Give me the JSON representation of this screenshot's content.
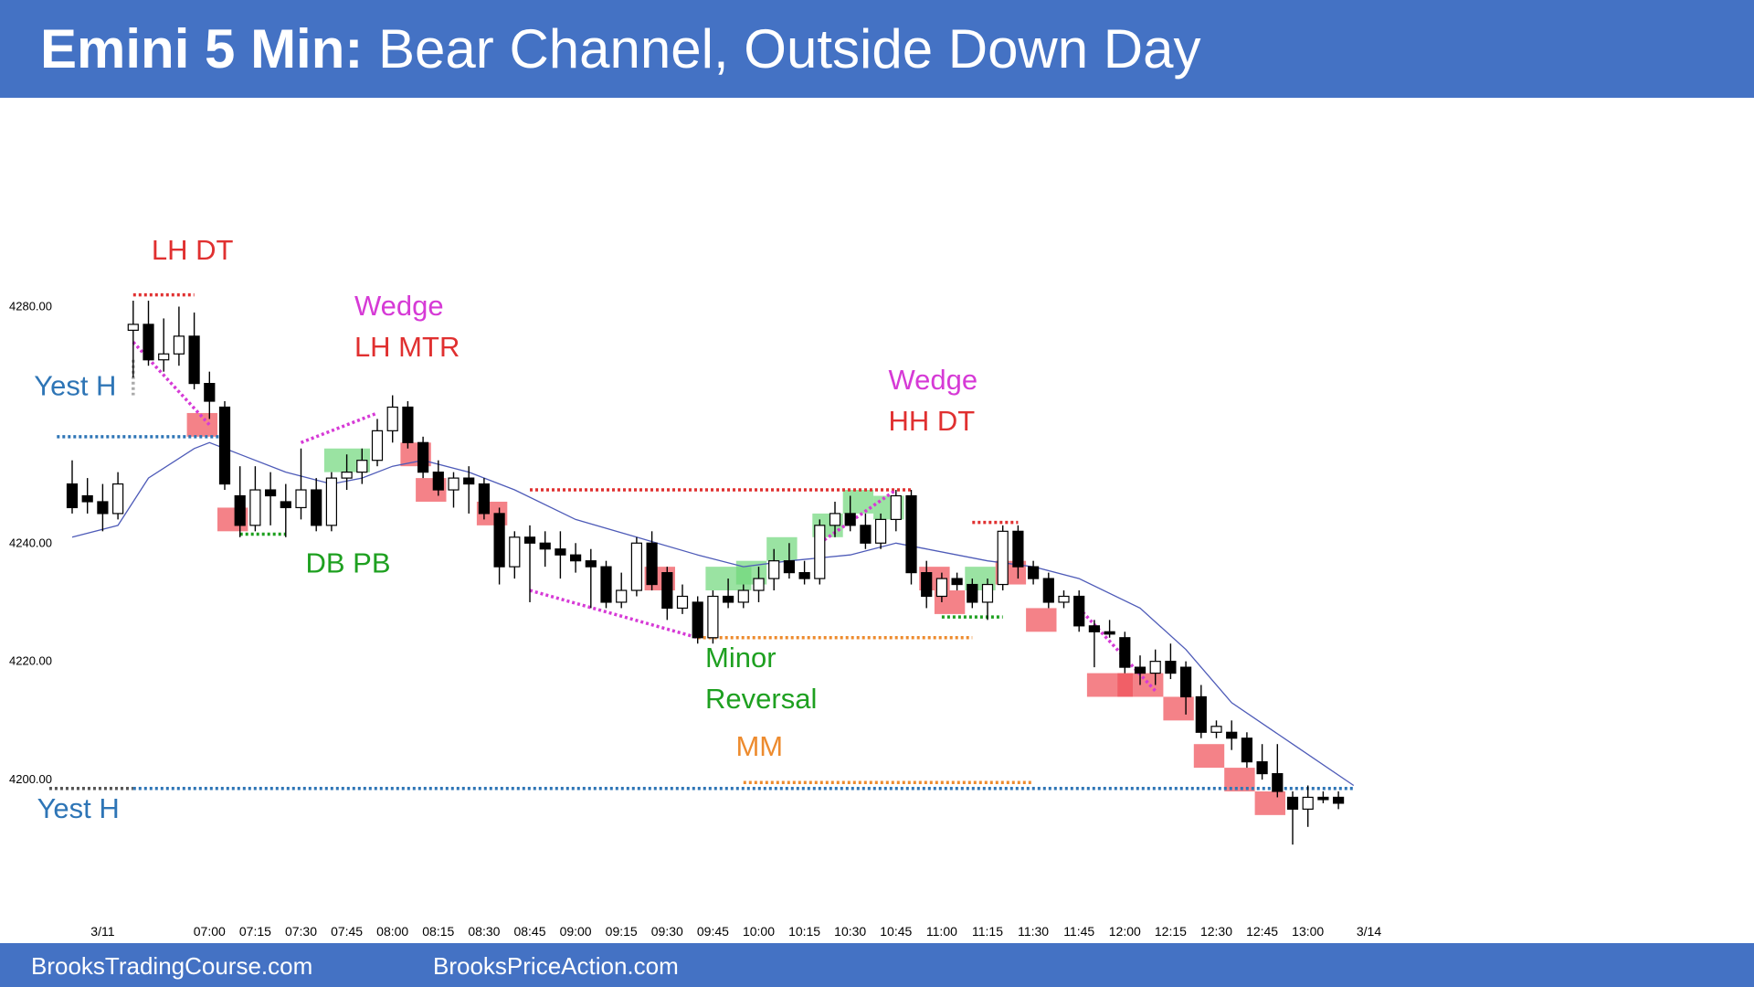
{
  "header": {
    "title_bold": "Emini 5 Min:",
    "title_rest": "Bear Channel, Outside Down Day",
    "background": "#4472c4"
  },
  "footer": {
    "left": "BrooksTradingCourse.com",
    "right": "BrooksPriceAction.com",
    "background": "#4472c4"
  },
  "chart_data": {
    "type": "candlestick",
    "ylim": [
      4183,
      4296
    ],
    "y_ticks": [
      "4280.00",
      "4240.00",
      "4220.00",
      "4200.00"
    ],
    "y_tick_values": [
      4280,
      4240,
      4220,
      4200
    ],
    "x_tick_labels": [
      "3/11",
      "07:00",
      "07:15",
      "07:30",
      "07:45",
      "08:00",
      "08:15",
      "08:30",
      "08:45",
      "09:00",
      "09:15",
      "09:30",
      "09:45",
      "10:00",
      "10:15",
      "10:30",
      "10:45",
      "11:00",
      "11:15",
      "11:30",
      "11:45",
      "12:00",
      "12:15",
      "12:30",
      "12:45",
      "13:00",
      "3/14"
    ],
    "x_tick_bar_index": [
      2,
      9,
      12,
      15,
      18,
      21,
      24,
      27,
      30,
      33,
      36,
      39,
      42,
      45,
      48,
      51,
      54,
      57,
      60,
      63,
      66,
      69,
      72,
      75,
      78,
      81,
      85
    ],
    "colors": {
      "bull": "#ffffff",
      "bear": "#000000",
      "ema": "#4e5bb8",
      "up_box": "#6fd77a",
      "down_box": "#f0525a"
    },
    "candles": [
      {
        "i": 0,
        "o": 4250,
        "h": 4254,
        "l": 4245,
        "c": 4246
      },
      {
        "i": 1,
        "o": 4248,
        "h": 4251,
        "l": 4245,
        "c": 4247
      },
      {
        "i": 2,
        "o": 4247,
        "h": 4250,
        "l": 4242,
        "c": 4245
      },
      {
        "i": 3,
        "o": 4245,
        "h": 4252,
        "l": 4244,
        "c": 4250
      },
      {
        "i": 4,
        "o": 4276,
        "h": 4281,
        "l": 4268,
        "c": 4277
      },
      {
        "i": 5,
        "o": 4277,
        "h": 4281,
        "l": 4270,
        "c": 4271
      },
      {
        "i": 6,
        "o": 4271,
        "h": 4278,
        "l": 4269,
        "c": 4272
      },
      {
        "i": 7,
        "o": 4272,
        "h": 4280,
        "l": 4270,
        "c": 4275
      },
      {
        "i": 8,
        "o": 4275,
        "h": 4279,
        "l": 4266,
        "c": 4267
      },
      {
        "i": 9,
        "o": 4267,
        "h": 4269,
        "l": 4261,
        "c": 4264
      },
      {
        "i": 10,
        "o": 4263,
        "h": 4264,
        "l": 4249,
        "c": 4250
      },
      {
        "i": 11,
        "o": 4248,
        "h": 4253,
        "l": 4241,
        "c": 4243
      },
      {
        "i": 12,
        "o": 4243,
        "h": 4253,
        "l": 4242,
        "c": 4249
      },
      {
        "i": 13,
        "o": 4249,
        "h": 4252,
        "l": 4243,
        "c": 4248
      },
      {
        "i": 14,
        "o": 4247,
        "h": 4250,
        "l": 4241,
        "c": 4246
      },
      {
        "i": 15,
        "o": 4246,
        "h": 4256,
        "l": 4244,
        "c": 4249
      },
      {
        "i": 16,
        "o": 4249,
        "h": 4251,
        "l": 4242,
        "c": 4243
      },
      {
        "i": 17,
        "o": 4243,
        "h": 4252,
        "l": 4242,
        "c": 4251
      },
      {
        "i": 18,
        "o": 4251,
        "h": 4255,
        "l": 4249,
        "c": 4252
      },
      {
        "i": 19,
        "o": 4252,
        "h": 4256,
        "l": 4250,
        "c": 4254
      },
      {
        "i": 20,
        "o": 4254,
        "h": 4261,
        "l": 4253,
        "c": 4259
      },
      {
        "i": 21,
        "o": 4259,
        "h": 4265,
        "l": 4257,
        "c": 4263
      },
      {
        "i": 22,
        "o": 4263,
        "h": 4264,
        "l": 4256,
        "c": 4257
      },
      {
        "i": 23,
        "o": 4257,
        "h": 4258,
        "l": 4251,
        "c": 4252
      },
      {
        "i": 24,
        "o": 4252,
        "h": 4254,
        "l": 4248,
        "c": 4249
      },
      {
        "i": 25,
        "o": 4249,
        "h": 4252,
        "l": 4246,
        "c": 4251
      },
      {
        "i": 26,
        "o": 4251,
        "h": 4253,
        "l": 4245,
        "c": 4250
      },
      {
        "i": 27,
        "o": 4250,
        "h": 4251,
        "l": 4244,
        "c": 4245
      },
      {
        "i": 28,
        "o": 4245,
        "h": 4246,
        "l": 4233,
        "c": 4236
      },
      {
        "i": 29,
        "o": 4236,
        "h": 4242,
        "l": 4234,
        "c": 4241
      },
      {
        "i": 30,
        "o": 4241,
        "h": 4243,
        "l": 4230,
        "c": 4240
      },
      {
        "i": 31,
        "o": 4240,
        "h": 4242,
        "l": 4236,
        "c": 4239
      },
      {
        "i": 32,
        "o": 4239,
        "h": 4242,
        "l": 4234,
        "c": 4238
      },
      {
        "i": 33,
        "o": 4238,
        "h": 4240,
        "l": 4235,
        "c": 4237
      },
      {
        "i": 34,
        "o": 4237,
        "h": 4239,
        "l": 4229,
        "c": 4236
      },
      {
        "i": 35,
        "o": 4236,
        "h": 4237,
        "l": 4229,
        "c": 4230
      },
      {
        "i": 36,
        "o": 4230,
        "h": 4235,
        "l": 4229,
        "c": 4232
      },
      {
        "i": 37,
        "o": 4232,
        "h": 4241,
        "l": 4231,
        "c": 4240
      },
      {
        "i": 38,
        "o": 4240,
        "h": 4242,
        "l": 4232,
        "c": 4233
      },
      {
        "i": 39,
        "o": 4235,
        "h": 4236,
        "l": 4227,
        "c": 4229
      },
      {
        "i": 40,
        "o": 4229,
        "h": 4233,
        "l": 4228,
        "c": 4231
      },
      {
        "i": 41,
        "o": 4230,
        "h": 4231,
        "l": 4223,
        "c": 4224
      },
      {
        "i": 42,
        "o": 4224,
        "h": 4232,
        "l": 4223,
        "c": 4231
      },
      {
        "i": 43,
        "o": 4231,
        "h": 4234,
        "l": 4229,
        "c": 4230
      },
      {
        "i": 44,
        "o": 4230,
        "h": 4233,
        "l": 4229,
        "c": 4232
      },
      {
        "i": 45,
        "o": 4232,
        "h": 4236,
        "l": 4230,
        "c": 4234
      },
      {
        "i": 46,
        "o": 4234,
        "h": 4239,
        "l": 4232,
        "c": 4237
      },
      {
        "i": 47,
        "o": 4237,
        "h": 4240,
        "l": 4234,
        "c": 4235
      },
      {
        "i": 48,
        "o": 4235,
        "h": 4237,
        "l": 4233,
        "c": 4234
      },
      {
        "i": 49,
        "o": 4234,
        "h": 4244,
        "l": 4233,
        "c": 4243
      },
      {
        "i": 50,
        "o": 4243,
        "h": 4247,
        "l": 4241,
        "c": 4245
      },
      {
        "i": 51,
        "o": 4245,
        "h": 4248,
        "l": 4242,
        "c": 4243
      },
      {
        "i": 52,
        "o": 4243,
        "h": 4245,
        "l": 4239,
        "c": 4240
      },
      {
        "i": 53,
        "o": 4240,
        "h": 4245,
        "l": 4239,
        "c": 4244
      },
      {
        "i": 54,
        "o": 4244,
        "h": 4249,
        "l": 4242,
        "c": 4248
      },
      {
        "i": 55,
        "o": 4248,
        "h": 4249,
        "l": 4233,
        "c": 4235
      },
      {
        "i": 56,
        "o": 4235,
        "h": 4237,
        "l": 4229,
        "c": 4231
      },
      {
        "i": 57,
        "o": 4231,
        "h": 4235,
        "l": 4230,
        "c": 4234
      },
      {
        "i": 58,
        "o": 4234,
        "h": 4235,
        "l": 4232,
        "c": 4233
      },
      {
        "i": 59,
        "o": 4233,
        "h": 4234,
        "l": 4229,
        "c": 4230
      },
      {
        "i": 60,
        "o": 4230,
        "h": 4234,
        "l": 4227,
        "c": 4233
      },
      {
        "i": 61,
        "o": 4233,
        "h": 4243,
        "l": 4232,
        "c": 4242
      },
      {
        "i": 62,
        "o": 4242,
        "h": 4243,
        "l": 4234,
        "c": 4236
      },
      {
        "i": 63,
        "o": 4236,
        "h": 4237,
        "l": 4233,
        "c": 4234
      },
      {
        "i": 64,
        "o": 4234,
        "h": 4235,
        "l": 4229,
        "c": 4230
      },
      {
        "i": 65,
        "o": 4230,
        "h": 4232,
        "l": 4229,
        "c": 4231
      },
      {
        "i": 66,
        "o": 4231,
        "h": 4232,
        "l": 4225,
        "c": 4226
      },
      {
        "i": 67,
        "o": 4226,
        "h": 4227,
        "l": 4219,
        "c": 4225
      },
      {
        "i": 68,
        "o": 4225,
        "h": 4227,
        "l": 4224,
        "c": 4225
      },
      {
        "i": 69,
        "o": 4224,
        "h": 4225,
        "l": 4218,
        "c": 4219
      },
      {
        "i": 70,
        "o": 4219,
        "h": 4221,
        "l": 4216,
        "c": 4218
      },
      {
        "i": 71,
        "o": 4218,
        "h": 4222,
        "l": 4216,
        "c": 4220
      },
      {
        "i": 72,
        "o": 4220,
        "h": 4223,
        "l": 4217,
        "c": 4218
      },
      {
        "i": 73,
        "o": 4219,
        "h": 4220,
        "l": 4211,
        "c": 4214
      },
      {
        "i": 74,
        "o": 4214,
        "h": 4216,
        "l": 4207,
        "c": 4208
      },
      {
        "i": 75,
        "o": 4208,
        "h": 4210,
        "l": 4207,
        "c": 4209
      },
      {
        "i": 76,
        "o": 4208,
        "h": 4210,
        "l": 4205,
        "c": 4207
      },
      {
        "i": 77,
        "o": 4207,
        "h": 4208,
        "l": 4202,
        "c": 4203
      },
      {
        "i": 78,
        "o": 4203,
        "h": 4206,
        "l": 4200,
        "c": 4201
      },
      {
        "i": 79,
        "o": 4201,
        "h": 4206,
        "l": 4197,
        "c": 4198
      },
      {
        "i": 80,
        "o": 4197,
        "h": 4198,
        "l": 4189,
        "c": 4195
      },
      {
        "i": 81,
        "o": 4195,
        "h": 4199,
        "l": 4192,
        "c": 4197
      },
      {
        "i": 82,
        "o": 4197,
        "h": 4198,
        "l": 4196,
        "c": 4197
      },
      {
        "i": 83,
        "o": 4197,
        "h": 4198,
        "l": 4195,
        "c": 4196
      }
    ],
    "ema": [
      [
        0,
        4241
      ],
      [
        3,
        4243
      ],
      [
        5,
        4251
      ],
      [
        8,
        4256
      ],
      [
        9,
        4257
      ],
      [
        11,
        4255
      ],
      [
        14,
        4252
      ],
      [
        17,
        4250
      ],
      [
        19,
        4251
      ],
      [
        21,
        4253
      ],
      [
        23,
        4254
      ],
      [
        26,
        4252
      ],
      [
        29,
        4249
      ],
      [
        33,
        4244
      ],
      [
        37,
        4241
      ],
      [
        41,
        4238
      ],
      [
        44,
        4236
      ],
      [
        47,
        4237
      ],
      [
        51,
        4238
      ],
      [
        54,
        4240
      ],
      [
        56,
        4239
      ],
      [
        60,
        4237
      ],
      [
        63,
        4236
      ],
      [
        66,
        4234
      ],
      [
        70,
        4229
      ],
      [
        73,
        4222
      ],
      [
        76,
        4213
      ],
      [
        80,
        4206
      ],
      [
        84,
        4199
      ]
    ],
    "horizontal_lines": [
      {
        "x1": 4,
        "x2": 8,
        "y": 4282,
        "color": "#e03030",
        "dash": "dot"
      },
      {
        "x1": -1,
        "x2": 10,
        "y": 4258,
        "color": "#2e75b6",
        "dash": "dot"
      },
      {
        "x1": 11,
        "x2": 14,
        "y": 4241.5,
        "color": "#1ea020",
        "dash": "dot"
      },
      {
        "x1": 30,
        "x2": 55,
        "y": 4249,
        "color": "#e03030",
        "dash": "dot"
      },
      {
        "x1": 41,
        "x2": 59,
        "y": 4224,
        "color": "#ed8b2e",
        "dash": "dot"
      },
      {
        "x1": 57,
        "x2": 61,
        "y": 4227.5,
        "color": "#1ea020",
        "dash": "dot"
      },
      {
        "x1": 59,
        "x2": 62,
        "y": 4243.5,
        "color": "#e03030",
        "dash": "dot"
      },
      {
        "x1": 44,
        "x2": 63,
        "y": 4199.5,
        "color": "#ed8b2e",
        "dash": "dot"
      },
      {
        "x1": -1.5,
        "x2": 4,
        "y": 4198.5,
        "color": "#555555",
        "dash": "dot"
      },
      {
        "x1": 4,
        "x2": 84,
        "y": 4198.5,
        "color": "#2e75b6",
        "dash": "dot"
      }
    ],
    "slanted_lines": [
      [
        4,
        4274,
        9,
        4260,
        "#d63ad6"
      ],
      [
        15,
        4257,
        20,
        4262,
        "#d63ad6"
      ],
      [
        30,
        4232,
        41,
        4224,
        "#d63ad6"
      ],
      [
        49,
        4240,
        54,
        4249,
        "#d63ad6"
      ],
      [
        66,
        4229,
        71,
        4215,
        "#d63ad6"
      ],
      [
        4,
        4271,
        4,
        4265,
        "#aaaaaa"
      ]
    ],
    "boxes": [
      {
        "x1": 8,
        "x2": 10,
        "y1": 4262,
        "y2": 4258,
        "kind": "down"
      },
      {
        "x1": 10,
        "x2": 12,
        "y1": 4246,
        "y2": 4242,
        "kind": "down"
      },
      {
        "x1": 17,
        "x2": 20,
        "y1": 4256,
        "y2": 4252,
        "kind": "up"
      },
      {
        "x1": 22,
        "x2": 24,
        "y1": 4257,
        "y2": 4253,
        "kind": "down"
      },
      {
        "x1": 23,
        "x2": 25,
        "y1": 4251,
        "y2": 4247,
        "kind": "down"
      },
      {
        "x1": 27,
        "x2": 29,
        "y1": 4247,
        "y2": 4243,
        "kind": "down"
      },
      {
        "x1": 38,
        "x2": 40,
        "y1": 4236,
        "y2": 4232,
        "kind": "down"
      },
      {
        "x1": 42,
        "x2": 45,
        "y1": 4236,
        "y2": 4232,
        "kind": "up"
      },
      {
        "x1": 44,
        "x2": 46,
        "y1": 4237,
        "y2": 4233,
        "kind": "up"
      },
      {
        "x1": 46,
        "x2": 48,
        "y1": 4241,
        "y2": 4237,
        "kind": "up"
      },
      {
        "x1": 49,
        "x2": 51,
        "y1": 4245,
        "y2": 4241,
        "kind": "up"
      },
      {
        "x1": 51,
        "x2": 53,
        "y1": 4249,
        "y2": 4245,
        "kind": "up"
      },
      {
        "x1": 53,
        "x2": 55,
        "y1": 4248,
        "y2": 4244,
        "kind": "up"
      },
      {
        "x1": 56,
        "x2": 58,
        "y1": 4236,
        "y2": 4232,
        "kind": "down"
      },
      {
        "x1": 57,
        "x2": 59,
        "y1": 4232,
        "y2": 4228,
        "kind": "down"
      },
      {
        "x1": 59,
        "x2": 61,
        "y1": 4236,
        "y2": 4232,
        "kind": "up"
      },
      {
        "x1": 61,
        "x2": 63,
        "y1": 4237,
        "y2": 4233,
        "kind": "down"
      },
      {
        "x1": 63,
        "x2": 65,
        "y1": 4229,
        "y2": 4225,
        "kind": "down"
      },
      {
        "x1": 67,
        "x2": 70,
        "y1": 4218,
        "y2": 4214,
        "kind": "down"
      },
      {
        "x1": 69,
        "x2": 72,
        "y1": 4218,
        "y2": 4214,
        "kind": "down"
      },
      {
        "x1": 72,
        "x2": 74,
        "y1": 4214,
        "y2": 4210,
        "kind": "down"
      },
      {
        "x1": 74,
        "x2": 76,
        "y1": 4206,
        "y2": 4202,
        "kind": "down"
      },
      {
        "x1": 76,
        "x2": 78,
        "y1": 4202,
        "y2": 4198,
        "kind": "down"
      },
      {
        "x1": 78,
        "x2": 80,
        "y1": 4198,
        "y2": 4194,
        "kind": "down"
      }
    ],
    "annotations": [
      {
        "lines": [
          "LH DT"
        ],
        "i": 5.2,
        "y": 4288,
        "colors": [
          "#e03030"
        ]
      },
      {
        "lines": [
          "Wedge",
          "LH MTR"
        ],
        "i": 18.5,
        "y": 4278.5,
        "colors": [
          "#d63ad6",
          "#e03030"
        ]
      },
      {
        "lines": [
          "Yest H"
        ],
        "i": -2.5,
        "y": 4265,
        "colors": [
          "#2e75b6"
        ]
      },
      {
        "lines": [
          "DB PB"
        ],
        "i": 15.3,
        "y": 4235,
        "colors": [
          "#1ea020"
        ]
      },
      {
        "lines": [
          "Wedge",
          "HH DT"
        ],
        "i": 53.5,
        "y": 4266,
        "colors": [
          "#d63ad6",
          "#e03030"
        ]
      },
      {
        "lines": [
          "Minor",
          "Reversal"
        ],
        "i": 41.5,
        "y": 4219,
        "colors": [
          "#1ea020",
          "#1ea020"
        ]
      },
      {
        "lines": [
          "MM"
        ],
        "i": 43.5,
        "y": 4204,
        "colors": [
          "#ed8b2e"
        ]
      },
      {
        "lines": [
          "Yest H"
        ],
        "i": -2.3,
        "y": 4193.5,
        "colors": [
          "#2e75b6"
        ]
      }
    ]
  }
}
